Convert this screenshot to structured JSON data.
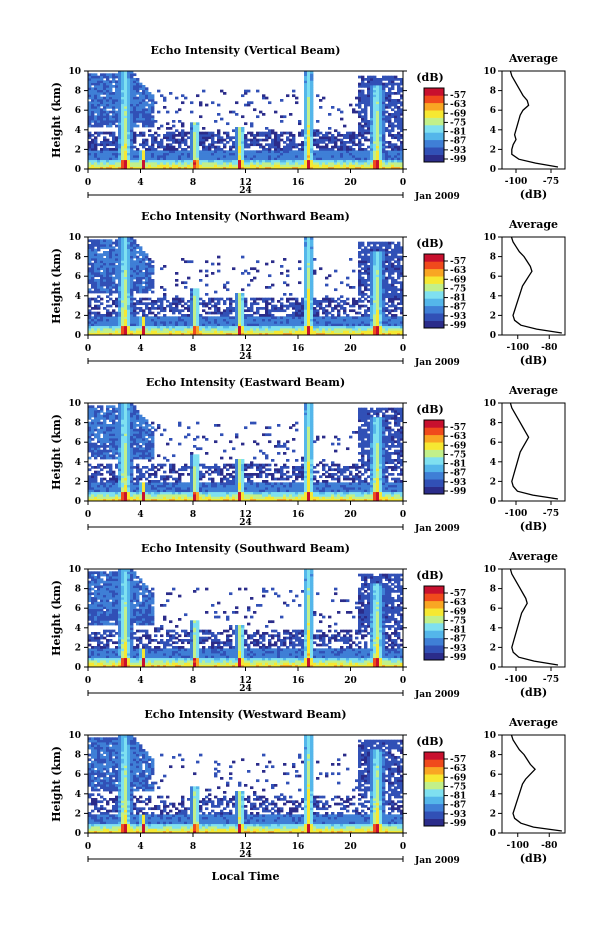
{
  "figure": {
    "xlabel": "Local Time",
    "date_label": "Jan 2009",
    "day_marker": "24",
    "avg_title": "Average",
    "avg_xlabel": "(dB)",
    "cb_label": "(dB)",
    "colors": [
      "#2b2c8a",
      "#3150b6",
      "#3f7fd6",
      "#54b6ea",
      "#7fe0f0",
      "#c2f08a",
      "#f6e832",
      "#f9a623",
      "#f04a1c",
      "#c8102e"
    ]
  },
  "chart_data": [
    {
      "type": "heatmap",
      "title": "Echo Intensity (Vertical Beam)",
      "ylabel": "Height (km)",
      "x_ticks": [
        "0",
        "4",
        "8",
        "12",
        "16",
        "20",
        "0"
      ],
      "y_ticks": [
        "0",
        "2",
        "4",
        "6",
        "8",
        "10"
      ],
      "xlim": [
        0,
        24
      ],
      "ylim": [
        0,
        10
      ],
      "colorbar": {
        "ticks": [
          "-57",
          "-63",
          "-69",
          "-75",
          "-81",
          "-87",
          "-93",
          "-99"
        ]
      },
      "average_profile": {
        "x_ticks": [
          "-100",
          "-75"
        ],
        "y_ticks": [
          "0",
          "2",
          "4",
          "6",
          "8",
          "10"
        ],
        "xlim": [
          -110,
          -65
        ],
        "height": [
          0.2,
          0.6,
          1.0,
          1.5,
          2.0,
          2.5,
          3.0,
          3.5,
          4.0,
          4.5,
          5.0,
          5.5,
          6.0,
          6.5,
          7.0,
          7.5,
          8.0,
          8.5,
          9.0,
          9.5,
          10.0
        ],
        "value": [
          -70,
          -86,
          -98,
          -103,
          -103,
          -102,
          -100,
          -101,
          -100,
          -99,
          -98,
          -97,
          -95,
          -91,
          -92,
          -95,
          -97,
          -99,
          -101,
          -103,
          -104
        ]
      }
    },
    {
      "type": "heatmap",
      "title": "Echo Intensity (Northward Beam)",
      "ylabel": "Height (km)",
      "x_ticks": [
        "0",
        "4",
        "8",
        "12",
        "16",
        "20",
        "0"
      ],
      "y_ticks": [
        "0",
        "2",
        "4",
        "6",
        "8",
        "10"
      ],
      "xlim": [
        0,
        24
      ],
      "ylim": [
        0,
        10
      ],
      "colorbar": {
        "ticks": [
          "-57",
          "-63",
          "-69",
          "-75",
          "-81",
          "-87",
          "-93",
          "-99"
        ]
      },
      "average_profile": {
        "x_ticks": [
          "-100",
          "-80"
        ],
        "y_ticks": [
          "0",
          "2",
          "4",
          "6",
          "8",
          "10"
        ],
        "xlim": [
          -110,
          -70
        ],
        "height": [
          0.2,
          0.6,
          1.0,
          1.5,
          2.0,
          2.5,
          3.0,
          3.5,
          4.0,
          4.5,
          5.0,
          5.5,
          6.0,
          6.5,
          7.0,
          7.5,
          8.0,
          8.5,
          9.0,
          9.5,
          10.0
        ],
        "value": [
          -72,
          -88,
          -98,
          -102,
          -103,
          -102,
          -101,
          -100,
          -99,
          -98,
          -97,
          -95,
          -93,
          -91,
          -92,
          -94,
          -96,
          -99,
          -101,
          -103,
          -104
        ]
      }
    },
    {
      "type": "heatmap",
      "title": "Echo Intensity (Eastward Beam)",
      "ylabel": "Height (km)",
      "x_ticks": [
        "0",
        "4",
        "8",
        "12",
        "16",
        "20",
        "0"
      ],
      "y_ticks": [
        "0",
        "2",
        "4",
        "6",
        "8",
        "10"
      ],
      "xlim": [
        0,
        24
      ],
      "ylim": [
        0,
        10
      ],
      "colorbar": {
        "ticks": [
          "-57",
          "-63",
          "-69",
          "-75",
          "-81",
          "-87",
          "-93",
          "-99"
        ]
      },
      "average_profile": {
        "x_ticks": [
          "-100",
          "-75"
        ],
        "y_ticks": [
          "0",
          "2",
          "4",
          "6",
          "8",
          "10"
        ],
        "xlim": [
          -110,
          -65
        ],
        "height": [
          0.2,
          0.6,
          1.0,
          1.5,
          2.0,
          2.5,
          3.0,
          3.5,
          4.0,
          4.5,
          5.0,
          5.5,
          6.0,
          6.5,
          7.0,
          7.5,
          8.0,
          8.5,
          9.0,
          9.5,
          10.0
        ],
        "value": [
          -70,
          -88,
          -99,
          -102,
          -103,
          -102,
          -101,
          -100,
          -99,
          -98,
          -97,
          -95,
          -93,
          -91,
          -93,
          -95,
          -97,
          -99,
          -101,
          -103,
          -104
        ]
      }
    },
    {
      "type": "heatmap",
      "title": "Echo Intensity (Southward Beam)",
      "ylabel": "Height (km)",
      "x_ticks": [
        "0",
        "4",
        "8",
        "12",
        "16",
        "20",
        "0"
      ],
      "y_ticks": [
        "0",
        "2",
        "4",
        "6",
        "8",
        "10"
      ],
      "xlim": [
        0,
        24
      ],
      "ylim": [
        0,
        10
      ],
      "colorbar": {
        "ticks": [
          "-57",
          "-63",
          "-69",
          "-75",
          "-81",
          "-87",
          "-93",
          "-99"
        ]
      },
      "average_profile": {
        "x_ticks": [
          "-100",
          "-75"
        ],
        "y_ticks": [
          "0",
          "2",
          "4",
          "6",
          "8",
          "10"
        ],
        "xlim": [
          -110,
          -65
        ],
        "height": [
          0.2,
          0.6,
          1.0,
          1.5,
          2.0,
          2.5,
          3.0,
          3.5,
          4.0,
          4.5,
          5.0,
          5.5,
          6.0,
          6.5,
          7.0,
          7.5,
          8.0,
          8.5,
          9.0,
          9.5,
          10.0
        ],
        "value": [
          -70,
          -87,
          -98,
          -102,
          -103,
          -102,
          -101,
          -100,
          -99,
          -98,
          -97,
          -96,
          -94,
          -92,
          -93,
          -95,
          -97,
          -99,
          -101,
          -103,
          -104
        ]
      }
    },
    {
      "type": "heatmap",
      "title": "Echo Intensity (Westward Beam)",
      "ylabel": "Height (km)",
      "x_ticks": [
        "0",
        "4",
        "8",
        "12",
        "16",
        "20",
        "0"
      ],
      "y_ticks": [
        "0",
        "2",
        "4",
        "6",
        "8",
        "10"
      ],
      "xlim": [
        0,
        24
      ],
      "ylim": [
        0,
        10
      ],
      "colorbar": {
        "ticks": [
          "-57",
          "-63",
          "-69",
          "-75",
          "-81",
          "-87",
          "-93",
          "-99"
        ]
      },
      "average_profile": {
        "x_ticks": [
          "-100",
          "-80"
        ],
        "y_ticks": [
          "0",
          "2",
          "4",
          "6",
          "8",
          "10"
        ],
        "xlim": [
          -110,
          -70
        ],
        "height": [
          0.2,
          0.6,
          1.0,
          1.5,
          2.0,
          2.5,
          3.0,
          3.5,
          4.0,
          4.5,
          5.0,
          5.5,
          6.0,
          6.5,
          7.0,
          7.5,
          8.0,
          8.5,
          9.0,
          9.5,
          10.0
        ],
        "value": [
          -72,
          -90,
          -98,
          -102,
          -103,
          -102,
          -101,
          -100,
          -99,
          -98,
          -97,
          -95,
          -92,
          -89,
          -92,
          -94,
          -96,
          -99,
          -101,
          -103,
          -104
        ]
      }
    }
  ]
}
